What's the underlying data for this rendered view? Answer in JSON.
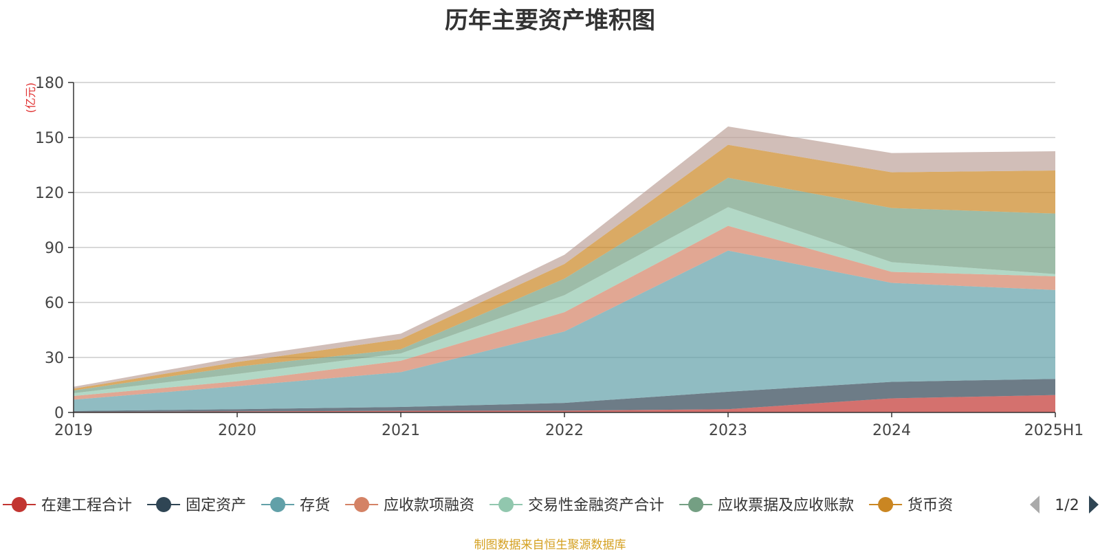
{
  "chart_data": {
    "type": "area",
    "stacked": true,
    "title": "历年主要资产堆积图",
    "unit": "(亿元)",
    "x": [
      "2019",
      "2020",
      "2021",
      "2022",
      "2023",
      "2024",
      "2025H1"
    ],
    "yticks": [
      "0",
      "30",
      "60",
      "90",
      "120",
      "150",
      "180"
    ],
    "ylim": [
      0,
      180
    ],
    "grid": true,
    "legend_position": "bottom",
    "series": [
      {
        "name": "在建工程合计",
        "color": "#c23531",
        "values": [
          0.3,
          0.6,
          0.9,
          1.0,
          1.8,
          7.7,
          9.5
        ]
      },
      {
        "name": "固定资产",
        "color": "#2f4554",
        "values": [
          0.5,
          1.2,
          2.1,
          4.2,
          9.5,
          9.0,
          8.8
        ]
      },
      {
        "name": "存货",
        "color": "#61a0a8",
        "values": [
          6.2,
          12.5,
          19.0,
          39.0,
          77.0,
          54.0,
          48.5
        ]
      },
      {
        "name": "应收款项融资",
        "color": "#d48265",
        "values": [
          2.0,
          2.7,
          6.2,
          10.5,
          13.5,
          6.0,
          7.5
        ]
      },
      {
        "name": "交易性金融资产合计",
        "color": "#91c7ae",
        "values": [
          1.5,
          4.0,
          4.0,
          9.3,
          10.2,
          5.3,
          1.2
        ]
      },
      {
        "name": "应收票据及应收账款",
        "color": "#749f83",
        "values": [
          1.5,
          4.0,
          2.3,
          9.0,
          16.0,
          29.5,
          33.0
        ]
      },
      {
        "name": "货币资",
        "color": "#ca8622",
        "values": [
          1.0,
          2.5,
          5.5,
          8.0,
          18.0,
          19.5,
          23.5
        ]
      },
      {
        "name": "",
        "color": "#bda29a",
        "values": [
          1.0,
          2.5,
          3.0,
          5.0,
          10.0,
          10.5,
          10.5
        ]
      }
    ]
  },
  "legend": {
    "page": "1/2",
    "items": [
      "在建工程合计",
      "固定资产",
      "存货",
      "应收款项融资",
      "交易性金融资产合计",
      "应收票据及应收账款",
      "货币资"
    ]
  },
  "source_note": "制图数据来自恒生聚源数据库",
  "colors": {
    "grid": "#cccccc",
    "axis": "#333333",
    "arrow_prev": "#aaaaaa",
    "arrow_next": "#2f4554"
  }
}
